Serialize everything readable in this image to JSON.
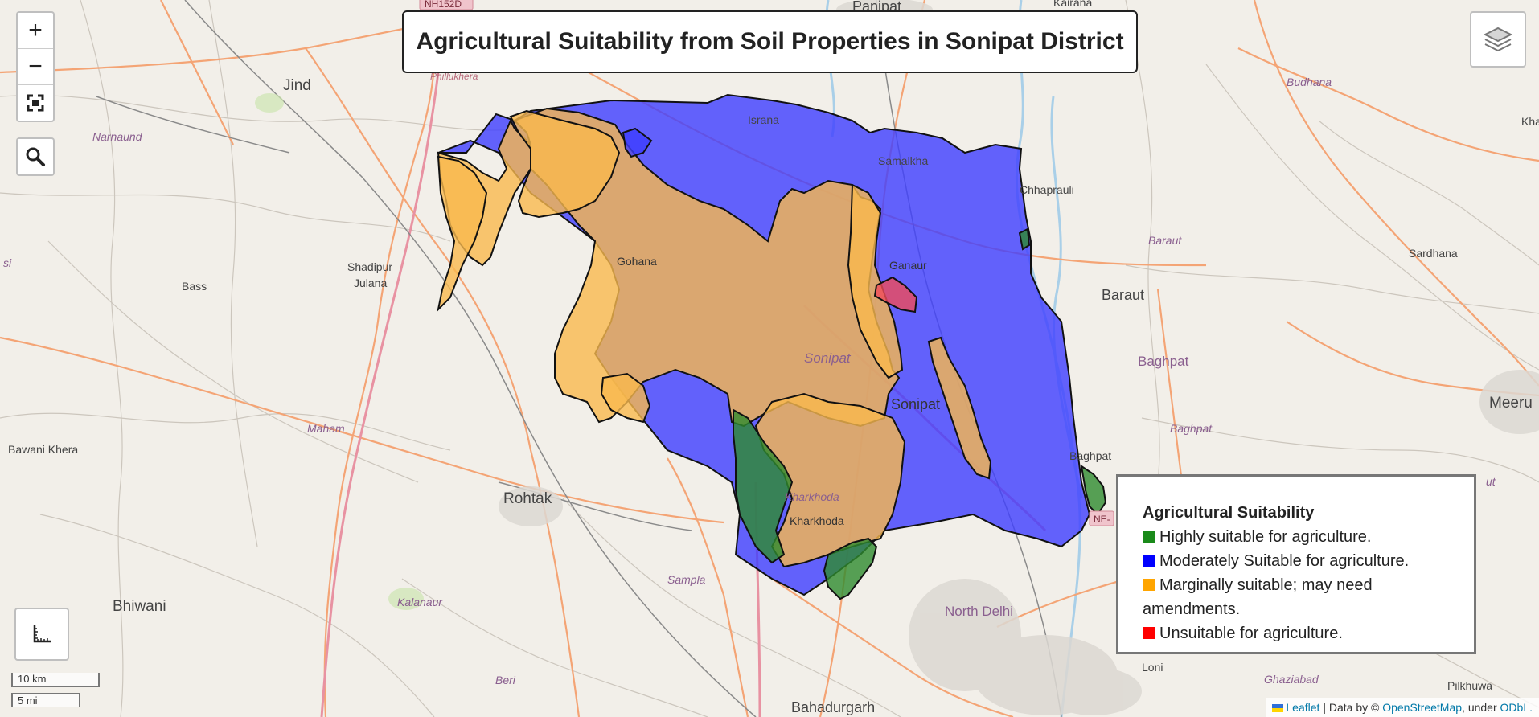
{
  "title": "Agricultural Suitability from Soil Properties in Sonipat District",
  "controls": {
    "zoom_in": "+",
    "zoom_out": "−",
    "fullscreen_icon": "fullscreen-icon",
    "search_icon": "search-icon",
    "layers_icon": "layers-icon",
    "measure_icon": "ruler-icon"
  },
  "legend": {
    "title": "Agricultural Suitability",
    "items": [
      {
        "label": "Highly suitable for agriculture.",
        "color": "#1a8a1a"
      },
      {
        "label": "Moderately Suitable for agriculture.",
        "color": "#0000ff"
      },
      {
        "label": "Marginally suitable; may need amendments.",
        "color": "#ffa500"
      },
      {
        "label": "Unsuitable for agriculture.",
        "color": "#ff0000"
      }
    ]
  },
  "colors": {
    "highly": "#2e8b2e",
    "moderately": "#3d3dff",
    "marginally": "#f9b94d",
    "unsuitable": "#f04b5a"
  },
  "scale": {
    "km": "10 km",
    "mi": "5 mi"
  },
  "attribution": {
    "leaflet": "Leaflet",
    "mid": " | Data by © ",
    "osm": "OpenStreetMap",
    "under": ", under ",
    "odbl": "ODbL."
  },
  "roadsigns": {
    "nh152d": "NH152D",
    "ne": "NE-"
  },
  "places": {
    "panipat": "Panipat",
    "kairana": "Kairana",
    "jind": "Jind",
    "narnaund": "Narnaund",
    "israna": "Israna",
    "samalkha": "Samalkha",
    "budhana": "Budhana",
    "chhaprauli": "Chhaprauli",
    "baraut_small": "Baraut",
    "sardhana": "Sardhana",
    "gohana": "Gohana",
    "ganaur": "Ganaur",
    "shadipur": "Shadipur",
    "julana": "Julana",
    "bass": "Bass",
    "baraut": "Baraut",
    "baghpat_big": "Baghpat",
    "meerut": "Meeru",
    "sonipat_italic": "Sonipat",
    "sonipat": "Sonipat",
    "maham": "Maham",
    "baghpat_small": "Baghpat",
    "bawani": "Bawani Khera",
    "baghpat_town": "Baghpat",
    "rohtak": "Rohtak",
    "kharkhoda_italic": "Kharkhoda",
    "kharkhoda": "Kharkhoda",
    "sampla": "Sampla",
    "kalanaur": "Kalanaur",
    "north_delhi": "North Delhi",
    "bhiwani": "Bhiwani",
    "loni": "Loni",
    "ghaziabad": "Ghaziabad",
    "pilkhuwa": "Pilkhuwa",
    "beri": "Beri",
    "bahadurgarh": "Bahadurgarh",
    "philukhera": "Phillukhera",
    "ut": "ut",
    "si": "si",
    "kha": "Kha"
  }
}
